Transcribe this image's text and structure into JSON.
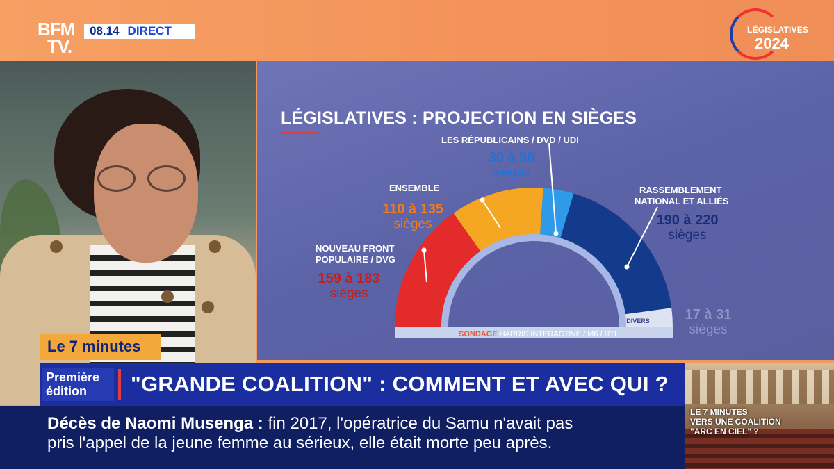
{
  "channel": {
    "logo_line1": "BFM",
    "logo_line2": "TV.",
    "time": "08.14",
    "live": "DIRECT",
    "badge_line1": "LÉGISLATIVES",
    "badge_line2": "2024"
  },
  "chart_data": {
    "type": "hemicycle",
    "title": "LÉGISLATIVES : PROJECTION EN SIÈGES",
    "source_part1": "SONDAGE",
    "source_part2": "HARRIS INTERACTIVE / M6 / RTL",
    "series": [
      {
        "name": "NOUVEAU FRONT POPULAIRE / DVG",
        "name_line1": "NOUVEAU FRONT",
        "name_line2": "POPULAIRE / DVG",
        "range": [
          159,
          183
        ],
        "value_text": "159 à 183",
        "unit": "sièges",
        "color": "#e42b2b",
        "label_color": "#c21f1f"
      },
      {
        "name": "ENSEMBLE",
        "range": [
          110,
          135
        ],
        "value_text": "110 à 135",
        "unit": "sièges",
        "color": "#f5a623",
        "label_color": "#f07c1e"
      },
      {
        "name": "LES RÉPUBLICAINS / DVD / UDI",
        "range": [
          30,
          50
        ],
        "value_text": "30 à 50",
        "unit": "sièges",
        "color": "#2f9ae8",
        "label_color": "#1e73d8"
      },
      {
        "name": "RASSEMBLEMENT NATIONAL ET ALLIÉS",
        "name_line1": "RASSEMBLEMENT",
        "name_line2": "NATIONAL ET ALLIÉS",
        "range": [
          190,
          220
        ],
        "value_text": "190 à 220",
        "unit": "sièges",
        "color": "#143a8c",
        "label_color": "#1b2e7a"
      },
      {
        "name": "DIVERS",
        "range": [
          17,
          31
        ],
        "value_text": "17 à 31",
        "unit": "sièges",
        "color": "#dde3f0",
        "label_color": "#8f95c8"
      }
    ]
  },
  "lower_third": {
    "segment": "Le 7 minutes",
    "edition_line1": "Première",
    "edition_line2": "édition",
    "headline": "\"GRANDE COALITION\" : COMMENT ET AVEC QUI ?",
    "ticker_bold": "Décès de Naomi Musenga :",
    "ticker_line1": "fin 2017, l'opératrice du Samu n'avait pas",
    "ticker_line2": "pris l'appel de la jeune femme au sérieux, elle était morte peu après."
  },
  "thumbnail": {
    "line1": "LE 7 MINUTES",
    "line2": "VERS UNE COALITION",
    "line3": "\"ARC EN CIEL\" ?"
  }
}
